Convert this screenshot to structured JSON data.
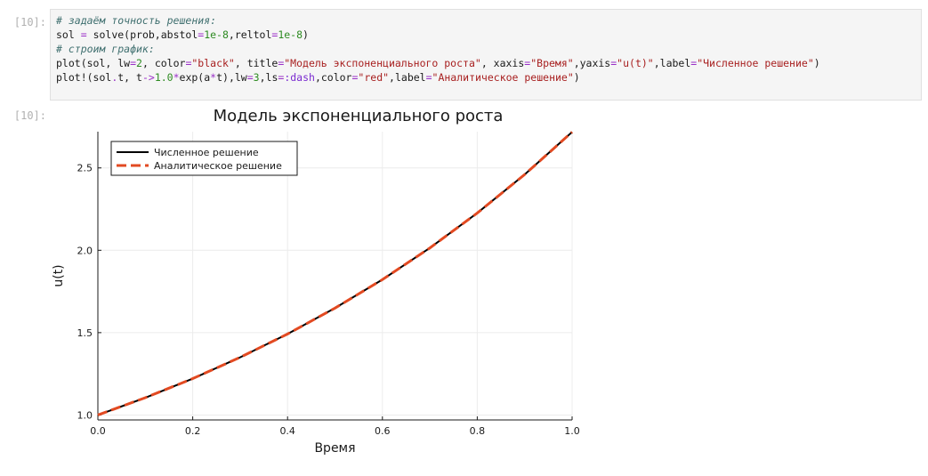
{
  "cell": {
    "in_prompt": "[10]:",
    "out_prompt": "[10]:",
    "code": [
      [
        {
          "t": "# задаём точность решения:",
          "c": "cm"
        }
      ],
      [
        {
          "t": "sol ",
          "c": ""
        },
        {
          "t": "=",
          "c": "op"
        },
        {
          "t": " solve(prob,abstol",
          "c": ""
        },
        {
          "t": "=",
          "c": "op"
        },
        {
          "t": "1e-8",
          "c": "num"
        },
        {
          "t": ",reltol",
          "c": ""
        },
        {
          "t": "=",
          "c": "op"
        },
        {
          "t": "1e-8",
          "c": "num"
        },
        {
          "t": ")",
          "c": ""
        }
      ],
      [
        {
          "t": "# строим график:",
          "c": "cm"
        }
      ],
      [
        {
          "t": "plot(sol, lw",
          "c": ""
        },
        {
          "t": "=",
          "c": "op"
        },
        {
          "t": "2",
          "c": "num"
        },
        {
          "t": ", color",
          "c": ""
        },
        {
          "t": "=",
          "c": "op"
        },
        {
          "t": "\"black\"",
          "c": "str"
        },
        {
          "t": ", title",
          "c": ""
        },
        {
          "t": "=",
          "c": "op"
        },
        {
          "t": "\"Модель экспоненциального роста\"",
          "c": "str"
        },
        {
          "t": ", xaxis",
          "c": ""
        },
        {
          "t": "=",
          "c": "op"
        },
        {
          "t": "\"Время\"",
          "c": "str"
        },
        {
          "t": ",yaxis",
          "c": ""
        },
        {
          "t": "=",
          "c": "op"
        },
        {
          "t": "\"u(t)\"",
          "c": "str"
        },
        {
          "t": ",label",
          "c": ""
        },
        {
          "t": "=",
          "c": "op"
        },
        {
          "t": "\"Численное решение\"",
          "c": "str"
        },
        {
          "t": ")",
          "c": ""
        }
      ],
      [
        {
          "t": "plot!(sol",
          "c": ""
        },
        {
          "t": ".",
          "c": "op"
        },
        {
          "t": "t, t",
          "c": ""
        },
        {
          "t": "->",
          "c": "op"
        },
        {
          "t": "1.0",
          "c": "num"
        },
        {
          "t": "*",
          "c": "op"
        },
        {
          "t": "exp(a",
          "c": ""
        },
        {
          "t": "*",
          "c": "op"
        },
        {
          "t": "t),lw",
          "c": ""
        },
        {
          "t": "=",
          "c": "op"
        },
        {
          "t": "3",
          "c": "num"
        },
        {
          "t": ",ls",
          "c": ""
        },
        {
          "t": "=",
          "c": "op"
        },
        {
          "t": ":dash",
          "c": "kw"
        },
        {
          "t": ",color",
          "c": ""
        },
        {
          "t": "=",
          "c": "op"
        },
        {
          "t": "\"red\"",
          "c": "str"
        },
        {
          "t": ",label",
          "c": ""
        },
        {
          "t": "=",
          "c": "op"
        },
        {
          "t": "\"Аналитическое решение\"",
          "c": "str"
        },
        {
          "t": ")",
          "c": ""
        }
      ]
    ]
  },
  "chart_data": {
    "type": "line",
    "title": "Модель экспоненциального роста",
    "xlabel": "Время",
    "ylabel": "u(t)",
    "xlim": [
      0,
      1
    ],
    "ylim": [
      0.97,
      2.72
    ],
    "xticks": [
      "0.0",
      "0.2",
      "0.4",
      "0.6",
      "0.8",
      "1.0"
    ],
    "yticks": [
      "1.0",
      "1.5",
      "2.0",
      "2.5"
    ],
    "grid": true,
    "legend": "top-left",
    "series": [
      {
        "name": "Численное решение",
        "color": "#000000",
        "style": "solid",
        "x": [
          0.0,
          0.1,
          0.2,
          0.3,
          0.4,
          0.5,
          0.6,
          0.7,
          0.8,
          0.9,
          1.0
        ],
        "y": [
          1.0,
          1.105,
          1.221,
          1.35,
          1.492,
          1.649,
          1.822,
          2.014,
          2.226,
          2.46,
          2.718
        ]
      },
      {
        "name": "Аналитическое решение",
        "color": "#e24a22",
        "style": "dash",
        "x": [
          0.0,
          0.1,
          0.2,
          0.3,
          0.4,
          0.5,
          0.6,
          0.7,
          0.8,
          0.9,
          1.0
        ],
        "y": [
          1.0,
          1.105,
          1.221,
          1.35,
          1.492,
          1.649,
          1.822,
          2.014,
          2.226,
          2.46,
          2.718
        ]
      }
    ]
  }
}
